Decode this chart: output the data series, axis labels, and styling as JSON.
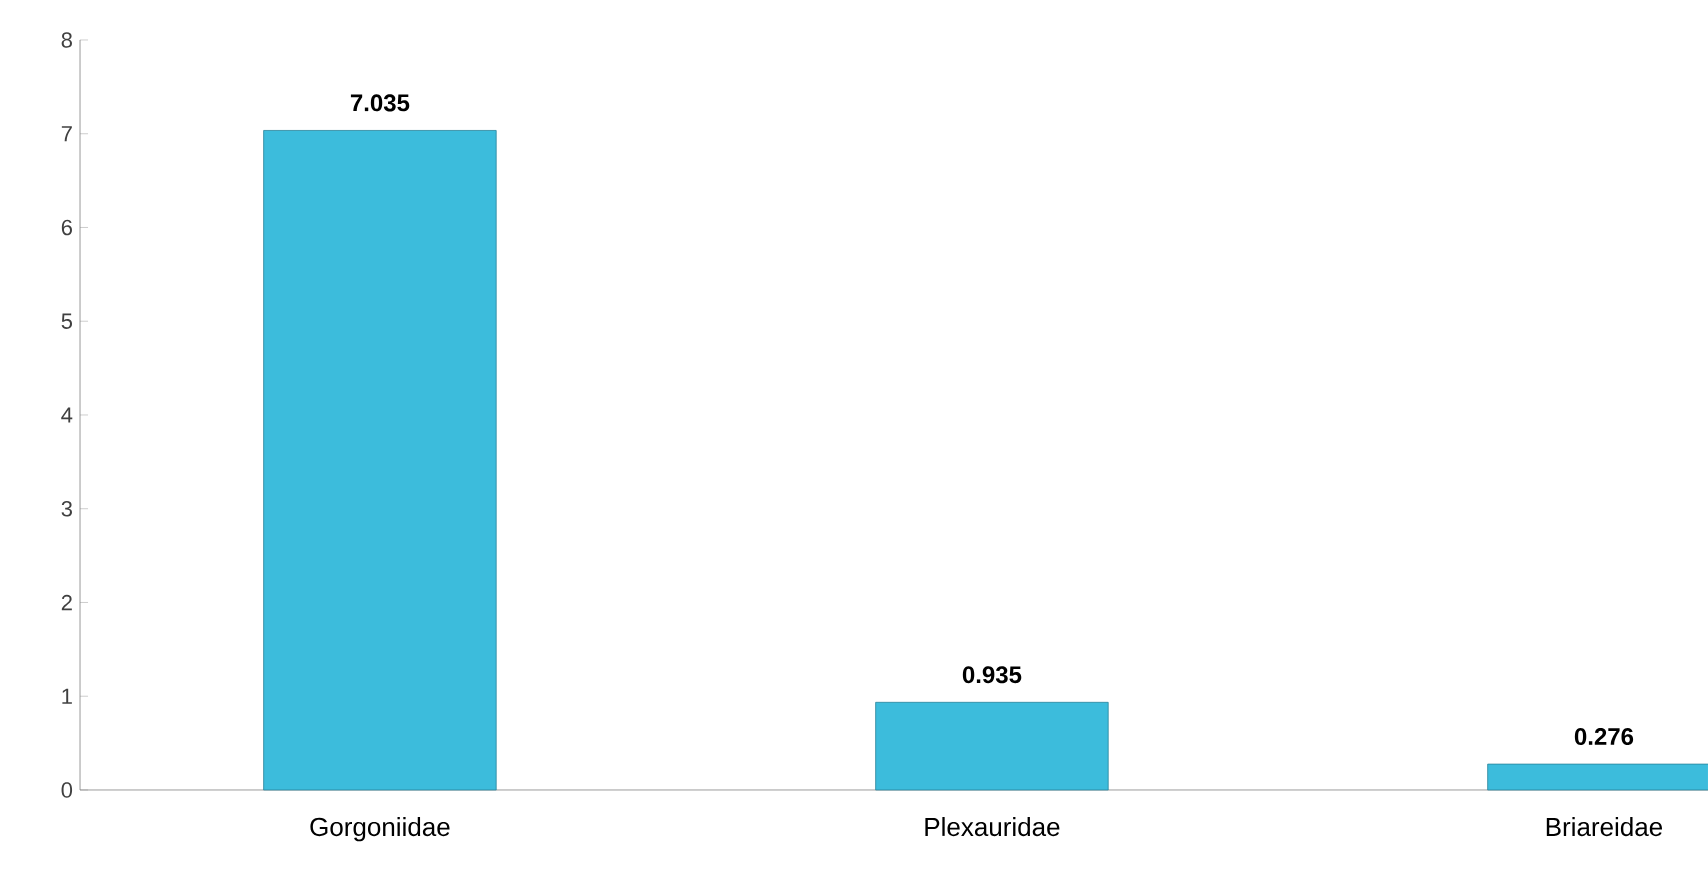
{
  "chart_data": {
    "type": "bar",
    "categories": [
      "Gorgoniidae",
      "Plexauridae",
      "Briareidae"
    ],
    "values": [
      7.035,
      0.935,
      0.276
    ],
    "color": "#3cbcdc",
    "ylim": [
      0,
      8
    ],
    "yticks": [
      0,
      1,
      2,
      3,
      4,
      5,
      6,
      7,
      8
    ],
    "data_labels": true
  }
}
